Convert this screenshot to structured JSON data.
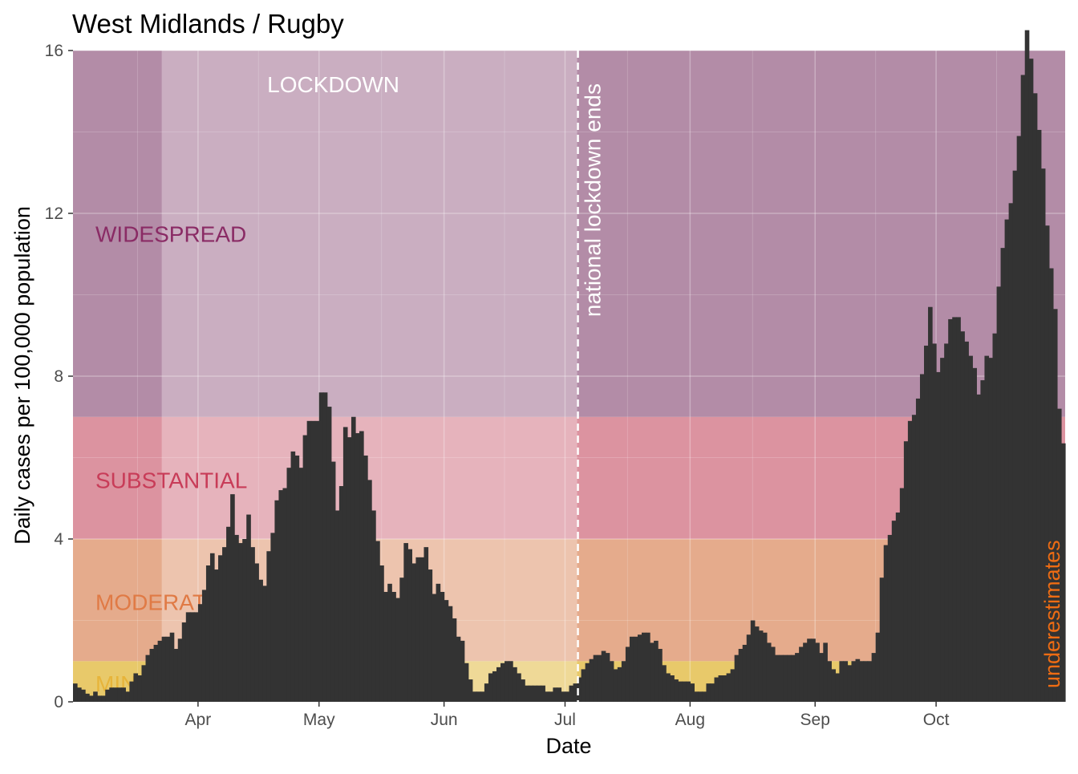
{
  "chart_data": {
    "type": "bar",
    "title": "West Midlands / Rugby",
    "xlabel": "Date",
    "ylabel": "Daily cases per 100,000 population",
    "x_start": "2020-03-01",
    "ylim": [
      0,
      16
    ],
    "yticks": [
      0,
      4,
      8,
      12,
      16
    ],
    "xticks": [
      {
        "label": "Apr",
        "date": "2020-04-01"
      },
      {
        "label": "May",
        "date": "2020-05-01"
      },
      {
        "label": "Jun",
        "date": "2020-06-01"
      },
      {
        "label": "Jul",
        "date": "2020-07-01"
      },
      {
        "label": "Aug",
        "date": "2020-08-01"
      },
      {
        "label": "Sep",
        "date": "2020-09-01"
      },
      {
        "label": "Oct",
        "date": "2020-10-01"
      }
    ],
    "bands": [
      {
        "name": "MINIMAL",
        "from": 0,
        "to": 1,
        "color": "#e8c96a",
        "label_color": "#e7b43a",
        "label_y": 0.45
      },
      {
        "name": "MODERATE",
        "from": 1,
        "to": 4,
        "color": "#e5ab8c",
        "label_color": "#e07a45",
        "label_y": 2.45
      },
      {
        "name": "SUBSTANTIAL",
        "from": 4,
        "to": 7,
        "color": "#dc93a0",
        "label_color": "#c83c58",
        "label_y": 5.45
      },
      {
        "name": "WIDESPREAD",
        "from": 7,
        "to": 16,
        "color": "#b38ca7",
        "label_color": "#8a2b65",
        "label_y": 11.5
      }
    ],
    "lockdown": {
      "label": "LOCKDOWN",
      "start": "2020-03-23",
      "end": "2020-07-04",
      "overlay_color": "#ffffff"
    },
    "national_lockdown_end": {
      "label": "national lockdown ends",
      "date": "2020-07-04"
    },
    "underestimate_note": {
      "label": "underestimates",
      "color": "#ee6c13"
    },
    "bar_color": "#333333",
    "values": [
      0.45,
      0.35,
      0.3,
      0.2,
      0.15,
      0.25,
      0.15,
      0.15,
      0.3,
      0.35,
      0.35,
      0.35,
      0.35,
      0.25,
      0.5,
      0.7,
      0.65,
      0.9,
      1.15,
      1.3,
      1.4,
      1.5,
      1.6,
      1.6,
      1.7,
      1.3,
      1.55,
      1.95,
      2.2,
      2.2,
      2.2,
      2.4,
      2.75,
      3.35,
      3.65,
      3.25,
      3.6,
      3.8,
      4.3,
      5.1,
      4.1,
      3.9,
      4.0,
      4.6,
      3.8,
      3.4,
      3.0,
      2.85,
      3.7,
      4.15,
      4.95,
      5.2,
      5.25,
      5.75,
      6.15,
      6.05,
      5.75,
      6.55,
      6.9,
      6.9,
      6.9,
      7.6,
      7.6,
      7.25,
      5.9,
      4.7,
      5.3,
      6.75,
      6.5,
      7.0,
      6.6,
      6.65,
      6.05,
      5.45,
      4.7,
      3.95,
      3.35,
      2.7,
      2.9,
      2.7,
      2.55,
      3.05,
      3.9,
      3.75,
      3.4,
      3.55,
      3.55,
      3.8,
      3.25,
      2.65,
      2.9,
      2.7,
      2.5,
      2.35,
      2.05,
      1.6,
      1.5,
      0.95,
      0.55,
      0.25,
      0.25,
      0.25,
      0.45,
      0.7,
      0.75,
      0.85,
      0.95,
      1.0,
      1.0,
      0.85,
      0.7,
      0.55,
      0.4,
      0.4,
      0.4,
      0.4,
      0.4,
      0.25,
      0.25,
      0.35,
      0.35,
      0.25,
      0.25,
      0.4,
      0.45,
      0.6,
      0.8,
      0.95,
      1.05,
      1.15,
      1.15,
      1.25,
      1.2,
      1.0,
      0.8,
      0.85,
      1.0,
      1.35,
      1.6,
      1.6,
      1.65,
      1.7,
      1.7,
      1.45,
      1.5,
      1.3,
      0.9,
      0.7,
      0.65,
      0.55,
      0.5,
      0.5,
      0.5,
      0.45,
      0.25,
      0.25,
      0.25,
      0.45,
      0.45,
      0.6,
      0.65,
      0.65,
      0.7,
      0.8,
      1.15,
      1.3,
      1.4,
      1.65,
      2.0,
      1.85,
      1.75,
      1.7,
      1.45,
      1.35,
      1.15,
      1.15,
      1.15,
      1.15,
      1.15,
      1.2,
      1.35,
      1.45,
      1.55,
      1.55,
      1.45,
      1.2,
      1.45,
      1.0,
      0.8,
      0.7,
      1.0,
      1.0,
      0.9,
      1.0,
      1.05,
      1.0,
      1.0,
      1.0,
      1.2,
      1.7,
      3.05,
      3.85,
      4.1,
      4.45,
      4.65,
      5.25,
      6.4,
      6.9,
      7.05,
      7.45,
      8.05,
      8.75,
      9.7,
      8.8,
      8.1,
      8.45,
      8.8,
      9.4,
      9.45,
      9.45,
      9.1,
      8.85,
      8.5,
      8.2,
      7.55,
      7.9,
      8.5,
      8.45,
      9.05,
      10.2,
      11.15,
      11.85,
      12.25,
      13.05,
      13.9,
      15.4,
      16.9,
      15.8,
      14.95,
      14.05,
      13.1,
      11.7,
      10.65,
      9.65,
      7.2,
      6.35
    ]
  }
}
